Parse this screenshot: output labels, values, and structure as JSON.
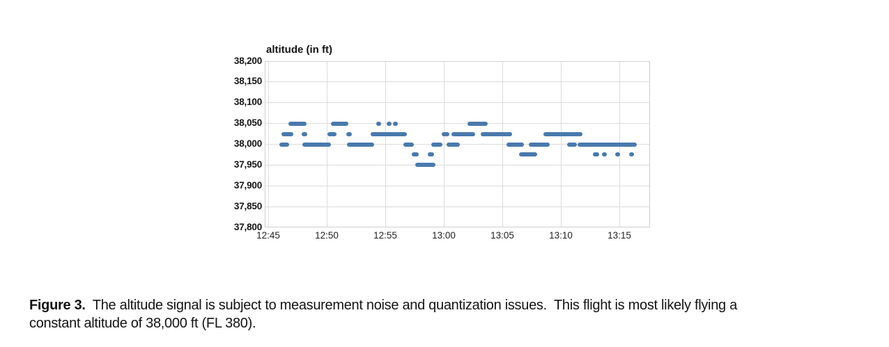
{
  "figure": {
    "chart_title": "altitude (in ft)"
  },
  "caption": {
    "label": "Figure 3.",
    "line1_rest": "  The altitude signal is subject to measurement noise and quantization issues.  This flight is most likely flying a",
    "line2": "constant altitude of 38,000 ft (FL 380)."
  },
  "chart_data": {
    "type": "scatter",
    "title": "altitude (in ft)",
    "xlabel": "",
    "ylabel": "altitude (in ft)",
    "grid": true,
    "marker_color": "#4a79ad",
    "gridline_color": "#dcdcdc",
    "ylim": [
      37800,
      38200
    ],
    "y_tick_step_ft": 50,
    "y_tick_labels": [
      "38,200",
      "38,150",
      "38,100",
      "38,050",
      "38,000",
      "37,950",
      "37,900",
      "37,850",
      "37,800"
    ],
    "x_tick_labels": [
      "12:45",
      "12:50",
      "12:55",
      "13:00",
      "13:05",
      "13:10",
      "13:15"
    ],
    "x_tick_minutes": [
      0,
      5,
      10,
      15,
      20,
      25,
      30
    ],
    "x_range_minutes": [
      -0.3,
      32.6
    ],
    "quantization_step_ft": 25,
    "series": [
      {
        "name": "altitude 38,050 ft",
        "alt": 38050,
        "segments": [
          [
            1.8,
            3.2
          ],
          [
            5.4,
            6.8
          ],
          [
            9.3,
            9.6
          ],
          [
            10.2,
            10.5
          ],
          [
            10.7,
            11.0
          ],
          [
            17.1,
            18.7
          ]
        ]
      },
      {
        "name": "altitude 38,025 ft",
        "alt": 38025,
        "segments": [
          [
            1.2,
            2.1
          ],
          [
            2.9,
            3.3
          ],
          [
            5.1,
            5.8
          ],
          [
            6.7,
            7.1
          ],
          [
            8.8,
            11.8
          ],
          [
            14.9,
            15.4
          ],
          [
            15.7,
            17.6
          ],
          [
            18.2,
            20.8
          ],
          [
            23.6,
            26.8
          ]
        ]
      },
      {
        "name": "altitude 38,000 ft",
        "alt": 38000,
        "segments": [
          [
            1.0,
            1.7
          ],
          [
            3.0,
            5.3
          ],
          [
            6.8,
            9.0
          ],
          [
            11.6,
            12.4
          ],
          [
            14.0,
            14.8
          ],
          [
            15.3,
            16.3
          ],
          [
            20.4,
            21.8
          ],
          [
            22.3,
            24.0
          ],
          [
            25.6,
            26.3
          ],
          [
            26.5,
            31.4
          ]
        ]
      },
      {
        "name": "altitude 37,975 ft",
        "alt": 37975,
        "segments": [
          [
            12.3,
            12.8
          ],
          [
            13.7,
            14.1
          ],
          [
            21.5,
            22.9
          ],
          [
            27.8,
            28.2
          ],
          [
            28.6,
            28.8
          ],
          [
            29.7,
            30.0
          ],
          [
            30.9,
            31.2
          ]
        ]
      },
      {
        "name": "altitude 37,950 ft",
        "alt": 37950,
        "segments": [
          [
            12.6,
            14.2
          ]
        ]
      }
    ]
  }
}
